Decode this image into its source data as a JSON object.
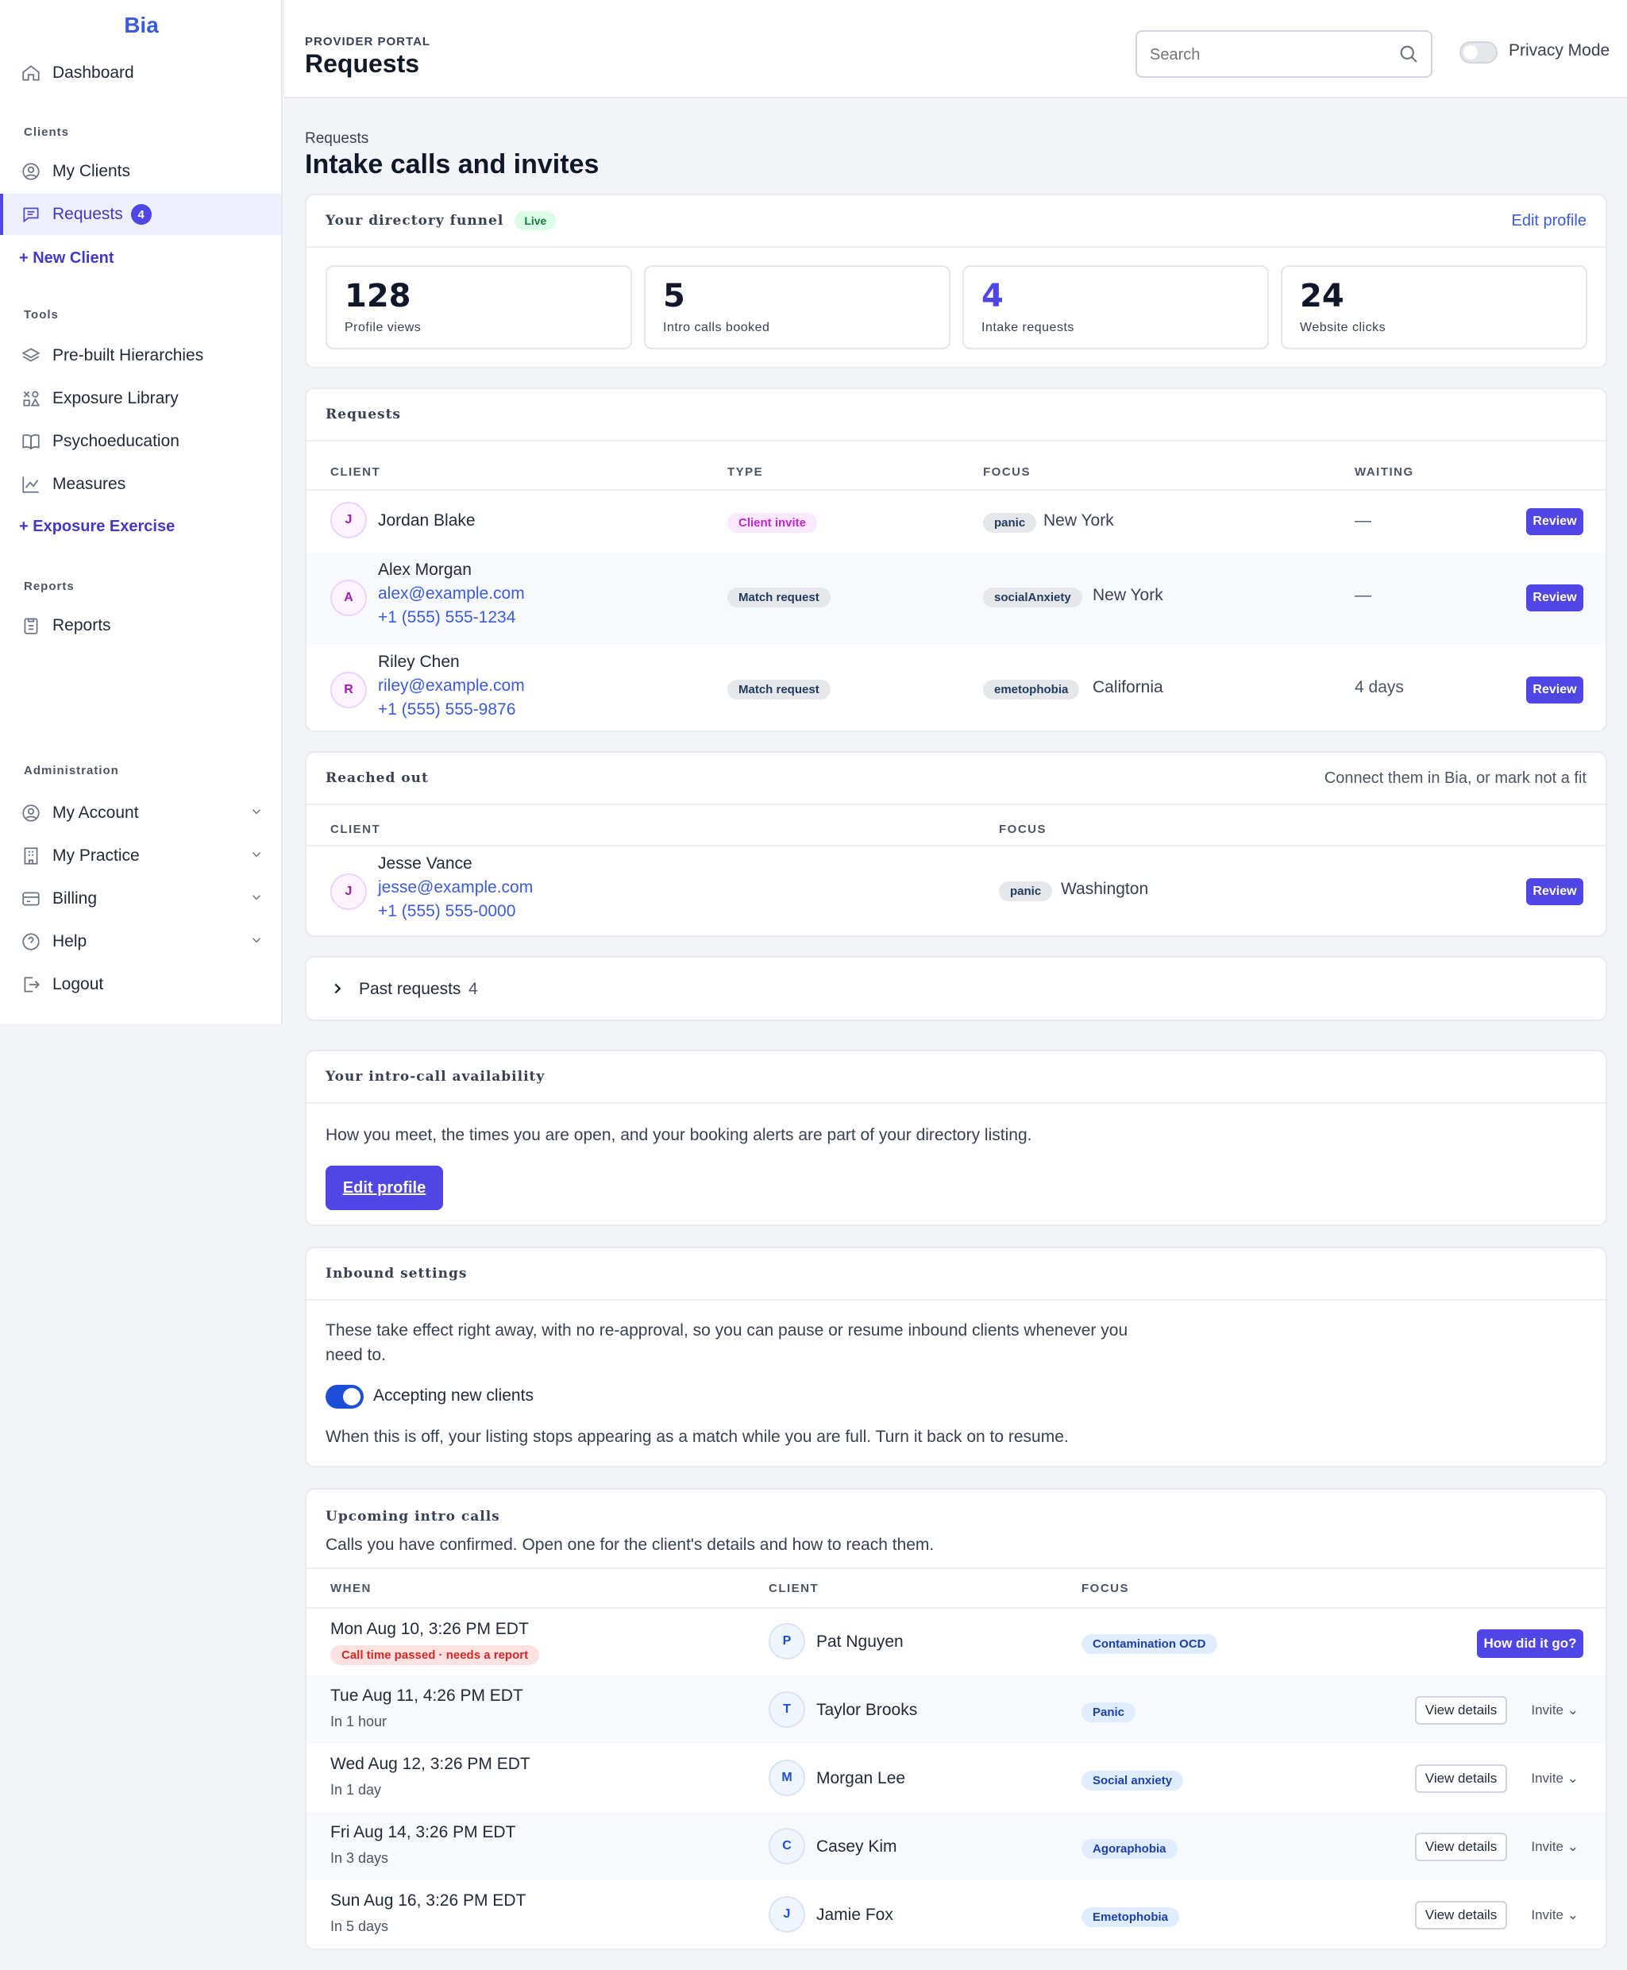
{
  "app": {
    "brand": "Bia"
  },
  "sidebar": {
    "dashboard": "Dashboard",
    "clients_section": "Clients",
    "my_clients": "My Clients",
    "requests": "Requests",
    "requests_count": "4",
    "new_client": "+ New Client",
    "tools_section": "Tools",
    "prebuilt": "Pre-built Hierarchies",
    "exposure_library": "Exposure Library",
    "psychoeducation": "Psychoeducation",
    "measures": "Measures",
    "exposure_exercise": "+ Exposure Exercise",
    "reports_section": "Reports",
    "reports": "Reports",
    "admin_section": "Administration",
    "my_account": "My Account",
    "my_practice": "My Practice",
    "billing": "Billing",
    "help": "Help",
    "logout": "Logout"
  },
  "header": {
    "eyebrow": "PROVIDER PORTAL",
    "title": "Requests",
    "search_placeholder": "Search",
    "privacy_label": "Privacy Mode"
  },
  "page": {
    "breadcrumb": "Requests",
    "title": "Intake calls and invites"
  },
  "funnel": {
    "title": "Your directory funnel",
    "status": "Live",
    "edit_link": "Edit profile",
    "stats": [
      {
        "value": "128",
        "label": "Profile views"
      },
      {
        "value": "5",
        "label": "Intro calls booked"
      },
      {
        "value": "4",
        "label": "Intake requests"
      },
      {
        "value": "24",
        "label": "Website clicks"
      }
    ]
  },
  "requests": {
    "title": "Requests",
    "columns": [
      "CLIENT",
      "TYPE",
      "FOCUS",
      "WAITING"
    ],
    "rows": [
      {
        "initial": "J",
        "name": "Jordan Blake",
        "email": "",
        "phone": "",
        "type": "Client invite",
        "focus": "panic",
        "location": "New York",
        "waiting": "—",
        "action": "Review"
      },
      {
        "initial": "A",
        "name": "Alex Morgan",
        "email": "alex@example.com",
        "phone": "+1 (555) 555-1234",
        "type": "Match request",
        "focus": "socialAnxiety",
        "location": "New York",
        "waiting": "—",
        "action": "Review"
      },
      {
        "initial": "R",
        "name": "Riley Chen",
        "email": "riley@example.com",
        "phone": "+1 (555) 555-9876",
        "type": "Match request",
        "focus": "emetophobia",
        "location": "California",
        "waiting": "4 days",
        "action": "Review"
      }
    ]
  },
  "reached_out": {
    "title": "Reached out",
    "note": "Connect them in Bia, or mark not a fit",
    "columns": [
      "CLIENT",
      "FOCUS"
    ],
    "rows": [
      {
        "initial": "J",
        "name": "Jesse Vance",
        "email": "jesse@example.com",
        "phone": "+1 (555) 555-0000",
        "focus": "panic",
        "location": "Washington",
        "action": "Review"
      }
    ]
  },
  "past_requests": {
    "label": "Past requests",
    "count": "4"
  },
  "availability": {
    "title": "Your intro-call availability",
    "text": "How you meet, the times you are open, and your booking alerts are part of your directory listing.",
    "button": "Edit profile"
  },
  "inbound": {
    "title": "Inbound settings",
    "text1": "These take effect right away, with no re-approval, so you can pause or resume inbound clients whenever you",
    "text2": "need to.",
    "toggle_label": "Accepting new clients",
    "toggle_on": true,
    "text3": "When this is off, your listing stops appearing as a match while you are full. Turn it back on to resume."
  },
  "upcoming": {
    "title": "Upcoming intro calls",
    "subtitle": "Calls you have confirmed. Open one for the client's details and how to reach them.",
    "columns": [
      "WHEN",
      "CLIENT",
      "FOCUS"
    ],
    "rows": [
      {
        "when": "Mon Aug 10, 3:26 PM EDT",
        "sub": "Call time passed · needs a report",
        "initial": "P",
        "client": "Pat Nguyen",
        "focus": "Contamination OCD",
        "action": "How did it go?"
      },
      {
        "when": "Tue Aug 11, 4:26 PM EDT",
        "sub": "In 1 hour",
        "initial": "T",
        "client": "Taylor Brooks",
        "focus": "Panic",
        "action": "View details",
        "invite": "Invite"
      },
      {
        "when": "Wed Aug 12, 3:26 PM EDT",
        "sub": "In 1 day",
        "initial": "M",
        "client": "Morgan Lee",
        "focus": "Social anxiety",
        "action": "View details",
        "invite": "Invite"
      },
      {
        "when": "Fri Aug 14, 3:26 PM EDT",
        "sub": "In 3 days",
        "initial": "C",
        "client": "Casey Kim",
        "focus": "Agoraphobia",
        "action": "View details",
        "invite": "Invite"
      },
      {
        "when": "Sun Aug 16, 3:26 PM EDT",
        "sub": "In 5 days",
        "initial": "J",
        "client": "Jamie Fox",
        "focus": "Emetophobia",
        "action": "View details",
        "invite": "Invite"
      }
    ]
  }
}
